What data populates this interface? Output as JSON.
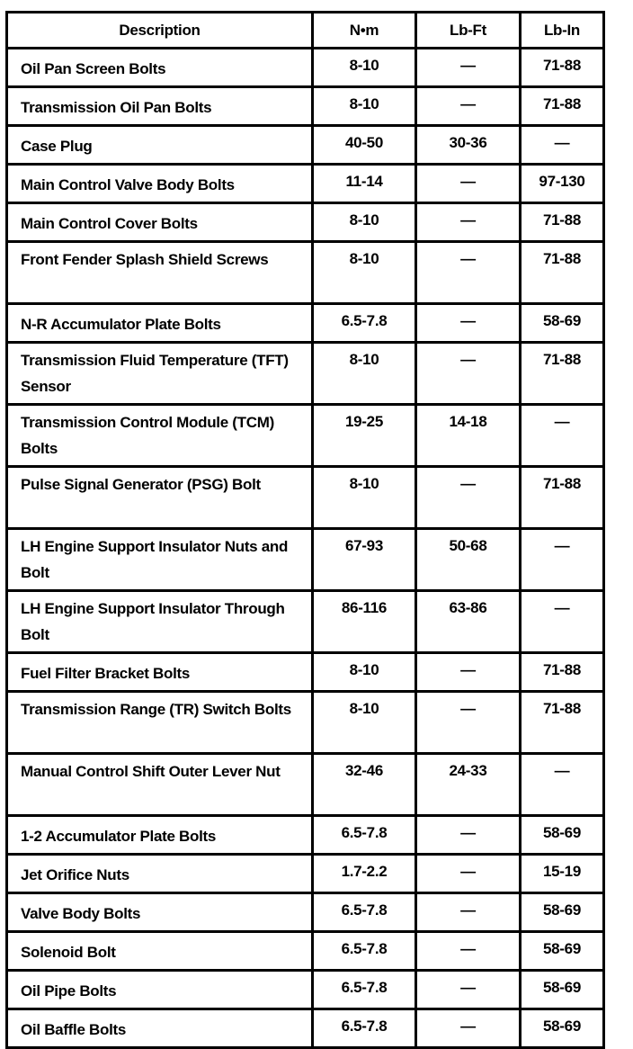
{
  "headers": [
    "Description",
    "N•m",
    "Lb-Ft",
    "Lb-In"
  ],
  "rows": [
    {
      "description": "Oil Pan Screen Bolts",
      "nm": "8-10",
      "lbft": "—",
      "lbin": "71-88"
    },
    {
      "description": "Transmission Oil Pan Bolts",
      "nm": "8-10",
      "lbft": "—",
      "lbin": "71-88"
    },
    {
      "description": "Case Plug",
      "nm": "40-50",
      "lbft": "30-36",
      "lbin": "—"
    },
    {
      "description": "Main Control Valve Body Bolts",
      "nm": "11-14",
      "lbft": "—",
      "lbin": "97-130"
    },
    {
      "description": "Main Control Cover Bolts",
      "nm": "8-10",
      "lbft": "—",
      "lbin": "71-88"
    },
    {
      "description": "Front Fender Splash Shield Screws",
      "nm": "8-10",
      "lbft": "—",
      "lbin": "71-88"
    },
    {
      "description": "N-R Accumulator Plate Bolts",
      "nm": "6.5-7.8",
      "lbft": "—",
      "lbin": "58-69"
    },
    {
      "description": "Transmission Fluid Temperature (TFT) Sensor",
      "nm": "8-10",
      "lbft": "—",
      "lbin": "71-88"
    },
    {
      "description": "Transmission Control Module (TCM) Bolts",
      "nm": "19-25",
      "lbft": "14-18",
      "lbin": "—"
    },
    {
      "description": "Pulse Signal Generator (PSG) Bolt",
      "nm": "8-10",
      "lbft": "—",
      "lbin": "71-88"
    },
    {
      "description": "LH Engine Support Insulator Nuts and Bolt",
      "nm": "67-93",
      "lbft": "50-68",
      "lbin": "—"
    },
    {
      "description": "LH Engine Support Insulator Through Bolt",
      "nm": "86-116",
      "lbft": "63-86",
      "lbin": "—"
    },
    {
      "description": "Fuel Filter Bracket Bolts",
      "nm": "8-10",
      "lbft": "—",
      "lbin": "71-88"
    },
    {
      "description": "Transmission Range (TR) Switch Bolts",
      "nm": "8-10",
      "lbft": "—",
      "lbin": "71-88"
    },
    {
      "description": "Manual Control Shift Outer Lever Nut",
      "nm": "32-46",
      "lbft": "24-33",
      "lbin": "—"
    },
    {
      "description": "1-2 Accumulator Plate Bolts",
      "nm": "6.5-7.8",
      "lbft": "—",
      "lbin": "58-69"
    },
    {
      "description": "Jet Orifice Nuts",
      "nm": "1.7-2.2",
      "lbft": "—",
      "lbin": "15-19"
    },
    {
      "description": "Valve Body Bolts",
      "nm": "6.5-7.8",
      "lbft": "—",
      "lbin": "58-69"
    },
    {
      "description": "Solenoid Bolt",
      "nm": "6.5-7.8",
      "lbft": "—",
      "lbin": "58-69"
    },
    {
      "description": "Oil Pipe Bolts",
      "nm": "6.5-7.8",
      "lbft": "—",
      "lbin": "58-69"
    },
    {
      "description": "Oil Baffle Bolts",
      "nm": "6.5-7.8",
      "lbft": "—",
      "lbin": "58-69"
    }
  ]
}
